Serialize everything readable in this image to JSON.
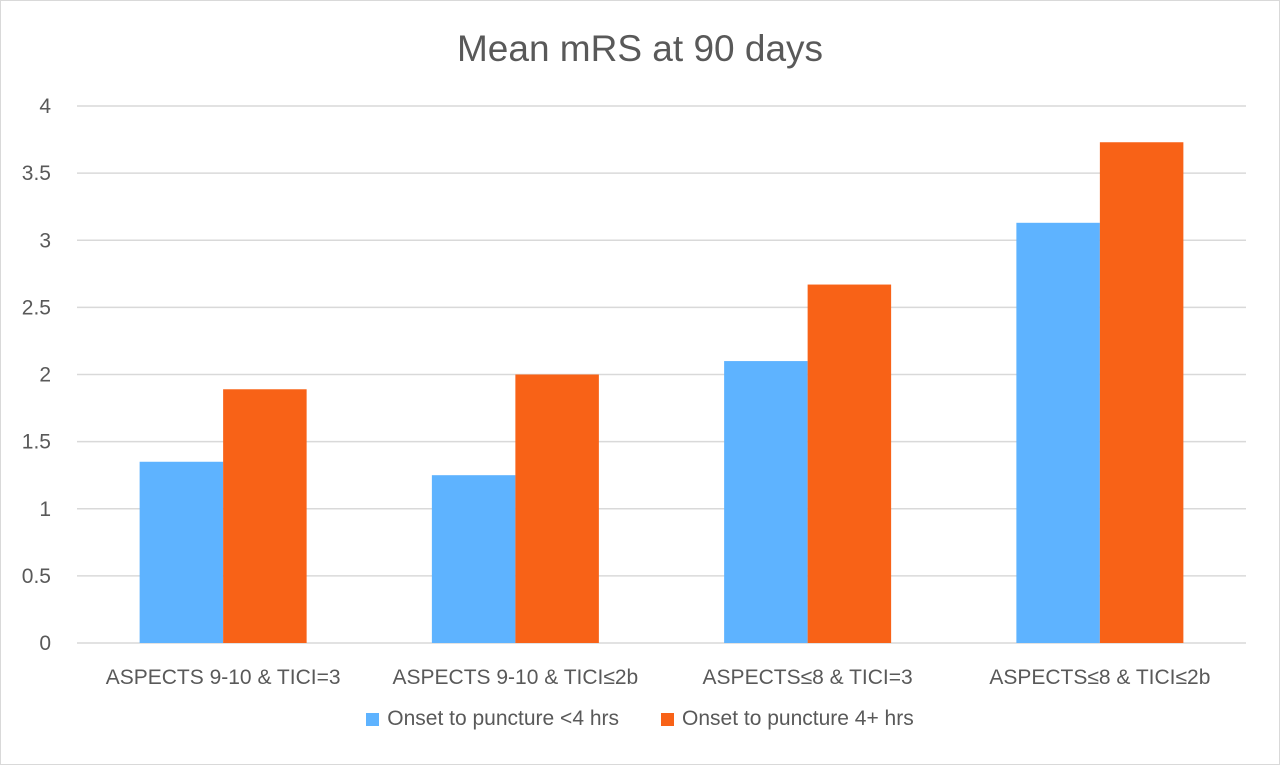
{
  "chart_data": {
    "type": "bar",
    "title": "Mean mRS at 90 days",
    "categories": [
      "ASPECTS 9-10 & TICI=3",
      "ASPECTS 9-10 & TICI≤2b",
      "ASPECTS≤8 & TICI=3",
      "ASPECTS≤8 & TICI≤2b"
    ],
    "series": [
      {
        "name": "Onset to puncture <4 hrs",
        "color": "#5eb3ff",
        "values": [
          1.35,
          1.25,
          2.1,
          3.13
        ]
      },
      {
        "name": "Onset to puncture 4+ hrs",
        "color": "#f86217",
        "values": [
          1.89,
          2.0,
          2.67,
          3.73
        ]
      }
    ],
    "y_ticks": [
      "0",
      "0.5",
      "1",
      "1.5",
      "2",
      "2.5",
      "3",
      "3.5",
      "4"
    ],
    "ylim": [
      0,
      4
    ],
    "grid": true,
    "legend_position": "bottom"
  }
}
